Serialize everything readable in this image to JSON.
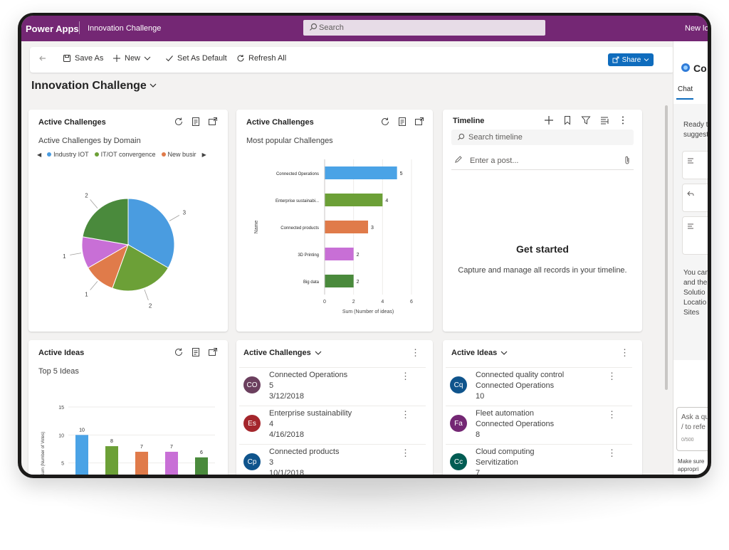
{
  "app": {
    "name": "Power Apps",
    "title": "Innovation Challenge",
    "search_placeholder": "Search",
    "new_look": "New lo"
  },
  "toolbar": {
    "save_as": "Save As",
    "new": "New",
    "set_as_default": "Set As Default",
    "refresh_all": "Refresh All",
    "share": "Share"
  },
  "dashboard": {
    "title": "Innovation Challenge"
  },
  "cards": {
    "pie": {
      "title": "Active Challenges",
      "subtitle": "Active Challenges by Domain",
      "legend": [
        "Industry IOT",
        "IT/OT convergence",
        "New busir"
      ]
    },
    "bar": {
      "title": "Active Challenges",
      "subtitle": "Most popular Challenges"
    },
    "timeline": {
      "title": "Timeline",
      "search_placeholder": "Search timeline",
      "post_placeholder": "Enter a post...",
      "get_started": "Get started",
      "get_started_sub": "Capture and manage all records in your timeline."
    },
    "ideas": {
      "title": "Active Ideas",
      "subtitle": "Top 5 Ideas"
    },
    "challenges_list": {
      "title": "Active Challenges",
      "items": [
        {
          "initials": "CO",
          "name": "Connected Operations",
          "count": "5",
          "date": "3/12/2018",
          "color": "#6b3f5e"
        },
        {
          "initials": "Es",
          "name": "Enterprise sustainability",
          "count": "4",
          "date": "4/16/2018",
          "color": "#a4262c"
        },
        {
          "initials": "Cp",
          "name": "Connected products",
          "count": "3",
          "date": "10/1/2018",
          "color": "#0f548c"
        }
      ]
    },
    "ideas_list": {
      "title": "Active Ideas",
      "items": [
        {
          "initials": "Cq",
          "name": "Connected quality control",
          "challenge": "Connected Operations",
          "votes": "10",
          "color": "#0f548c"
        },
        {
          "initials": "Fa",
          "name": "Fleet automation",
          "challenge": "Connected Operations",
          "votes": "8",
          "color": "#742774"
        },
        {
          "initials": "Cc",
          "name": "Cloud computing",
          "challenge": "Servitization",
          "votes": "7",
          "color": "#025c53"
        }
      ]
    }
  },
  "copilot": {
    "title": "Co",
    "tab": "Chat",
    "ready": "Ready t",
    "suggest": "suggest",
    "you_can": [
      "You can",
      "and the",
      "Solutio",
      "Locatio",
      "Sites"
    ],
    "ask": "Ask a qu",
    "refer": "/ to refe",
    "counter": "0/500",
    "disclaimer": [
      "Make sure",
      "appropri"
    ]
  },
  "chart_data": [
    {
      "type": "pie",
      "title": "Active Challenges by Domain",
      "slices": [
        {
          "label": "Industry IOT",
          "value": 3,
          "color": "#4a9ce0"
        },
        {
          "label": "IT/OT convergence",
          "value": 2,
          "color": "#6ca037"
        },
        {
          "label": "New busir",
          "value": 1,
          "color": "#e07b4a"
        },
        {
          "label": "",
          "value": 1,
          "color": "#c86fd6"
        },
        {
          "label": "",
          "value": 2,
          "color": "#4a8a3c"
        }
      ]
    },
    {
      "type": "bar",
      "orientation": "horizontal",
      "title": "Most popular Challenges",
      "categories": [
        "Connected Operations",
        "Enterprise sustainabi...",
        "Connected products",
        "3D Printing",
        "Big data"
      ],
      "values": [
        5,
        4,
        3,
        2,
        2
      ],
      "colors": [
        "#4aa3e6",
        "#6ca037",
        "#e07b4a",
        "#c86fd6",
        "#4a8a3c"
      ],
      "xlabel": "Sum (Number of ideas)",
      "ylabel": "Name",
      "xticks": [
        0,
        2,
        4,
        6
      ],
      "xlim": [
        0,
        6
      ]
    },
    {
      "type": "bar",
      "orientation": "vertical",
      "title": "Top 5 Ideas",
      "values": [
        10,
        8,
        7,
        7,
        6
      ],
      "colors": [
        "#4aa3e6",
        "#6ca037",
        "#e07b4a",
        "#c86fd6",
        "#4a8a3c"
      ],
      "ylabel": "Sum (Number of Votes)",
      "yticks": [
        0,
        5,
        10,
        15
      ],
      "ylim": [
        0,
        15
      ]
    }
  ]
}
